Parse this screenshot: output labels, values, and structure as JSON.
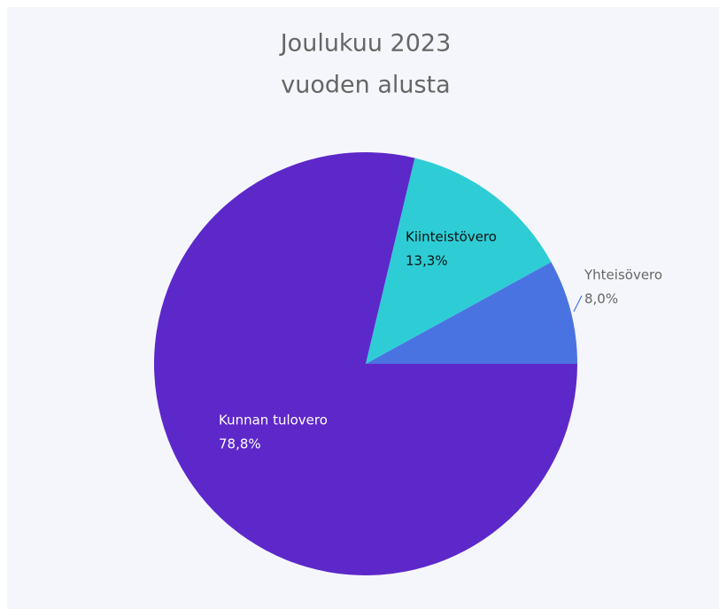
{
  "chart_data": {
    "type": "pie",
    "title": [
      "Joulukuu 2023",
      "vuoden alusta"
    ],
    "categories": [
      "Yhteisövero",
      "Kiinteistövero",
      "Kunnan tulovero"
    ],
    "values": [
      8.0,
      13.3,
      78.8
    ],
    "value_labels": [
      "8,0%",
      "13,3%",
      "78,8%"
    ],
    "colors": [
      "#4a73e2",
      "#2ecdd5",
      "#5d28c9"
    ]
  }
}
